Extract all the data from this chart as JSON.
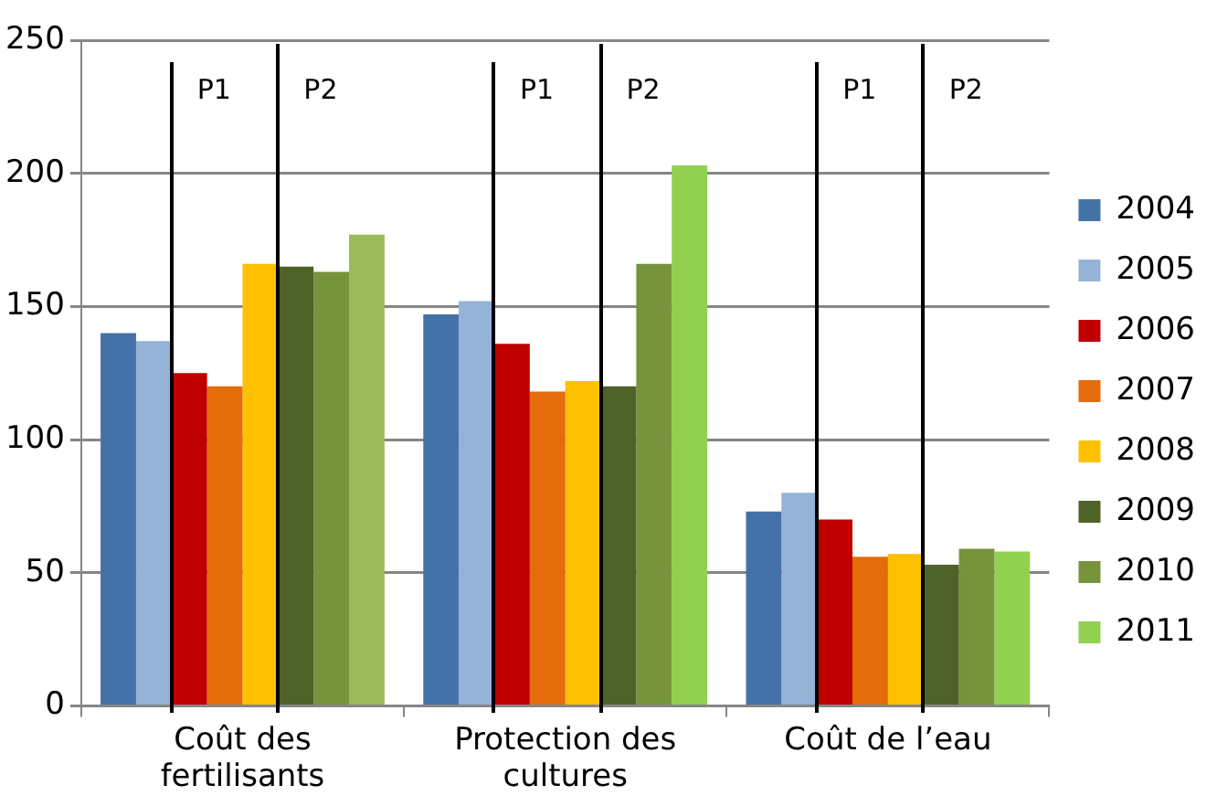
{
  "chart_data": {
    "type": "bar",
    "categories": [
      "Coût des fertilisants",
      "Protection des cultures",
      "Coût de l’eau"
    ],
    "series": [
      {
        "name": "2004",
        "color": "#4472a8",
        "values": [
          140,
          147,
          73
        ]
      },
      {
        "name": "2005",
        "color": "#95b3d7",
        "values": [
          137,
          152,
          80
        ]
      },
      {
        "name": "2006",
        "color": "#c00000",
        "values": [
          125,
          136,
          70
        ]
      },
      {
        "name": "2007",
        "color": "#e46c0a",
        "values": [
          120,
          118,
          56
        ]
      },
      {
        "name": "2008",
        "color": "#ffc000",
        "values": [
          166,
          122,
          57
        ]
      },
      {
        "name": "2009",
        "color": "#4f6228",
        "values": [
          165,
          120,
          53
        ]
      },
      {
        "name": "2010",
        "color": "#77933c",
        "values": [
          163,
          166,
          59
        ]
      },
      {
        "name": "2011",
        "color": "#92d050",
        "colors": [
          "#9bbb59",
          "#92d050",
          "#92d050"
        ],
        "values": [
          177,
          203,
          58
        ]
      }
    ],
    "ylim": [
      0,
      250
    ],
    "yticks": [
      0,
      50,
      100,
      150,
      200,
      250
    ],
    "grid": "y",
    "legend": "right",
    "annotations": [
      "P1",
      "P2",
      "P1",
      "P2",
      "P1",
      "P2"
    ]
  }
}
